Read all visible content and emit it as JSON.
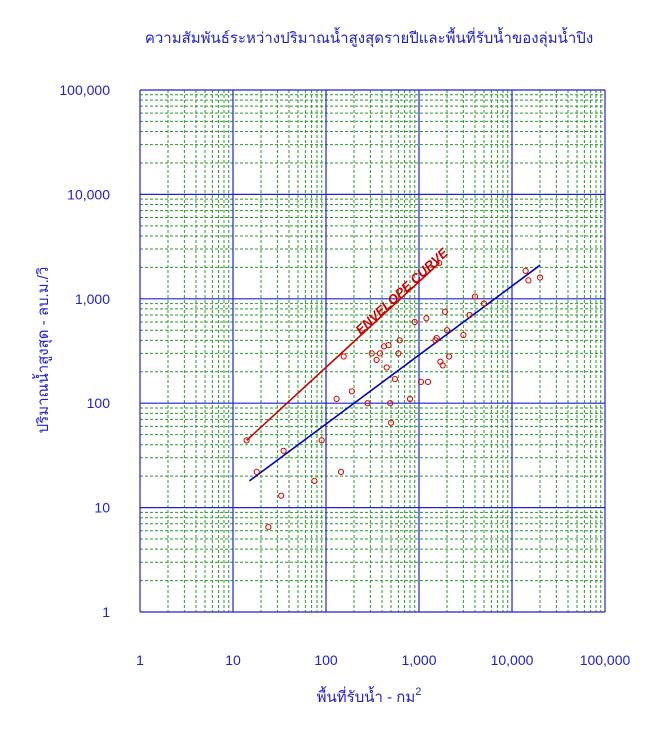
{
  "chart_data": {
    "type": "scatter",
    "title": "ความสัมพันธ์ระหว่างปริมาณน้ำสูงสุดรายปีและพื้นที่รับน้ำของลุ่มน้ำปิง",
    "xlabel": "พื้นที่รับน้ำ - กม",
    "xlabel_superscript": "2",
    "ylabel": "ปริมาณน้ำสูงสุด - ลบ.ม./วิ",
    "x_scale": "log",
    "y_scale": "log",
    "xlim": [
      1,
      100000
    ],
    "ylim": [
      1,
      100000
    ],
    "x_ticks": [
      1,
      10,
      100,
      1000,
      10000,
      100000
    ],
    "x_tick_labels": [
      "1",
      "10",
      "100",
      "1,000",
      "10,000",
      "100,000"
    ],
    "y_ticks": [
      1,
      10,
      100,
      1000,
      10000,
      100000
    ],
    "y_tick_labels": [
      "1",
      "10",
      "100",
      "1,000",
      "10,000",
      "100,000"
    ],
    "grid": "major solid blue, minor dashed green",
    "annotations": [
      {
        "text": "ENVELOPE CURVE",
        "color": "#cc0000",
        "anchor_x": 700,
        "anchor_y": 1100
      }
    ],
    "series": [
      {
        "kind": "points",
        "color": "#dd0000",
        "points": [
          [
            14,
            44
          ],
          [
            18,
            22
          ],
          [
            24,
            6.5
          ],
          [
            33,
            13
          ],
          [
            35,
            35
          ],
          [
            75,
            18
          ],
          [
            90,
            44
          ],
          [
            130,
            110
          ],
          [
            145,
            22
          ],
          [
            155,
            280
          ],
          [
            190,
            130
          ],
          [
            280,
            100
          ],
          [
            310,
            300
          ],
          [
            350,
            260
          ],
          [
            380,
            300
          ],
          [
            420,
            350
          ],
          [
            450,
            220
          ],
          [
            470,
            360
          ],
          [
            490,
            100
          ],
          [
            500,
            65
          ],
          [
            550,
            170
          ],
          [
            600,
            300
          ],
          [
            620,
            400
          ],
          [
            800,
            110
          ],
          [
            900,
            600
          ],
          [
            1050,
            160
          ],
          [
            1200,
            650
          ],
          [
            1250,
            160
          ],
          [
            1500,
            400
          ],
          [
            1550,
            420
          ],
          [
            1650,
            2200
          ],
          [
            1700,
            250
          ],
          [
            1800,
            230
          ],
          [
            1900,
            750
          ],
          [
            2000,
            500
          ],
          [
            2100,
            280
          ],
          [
            3000,
            450
          ],
          [
            3500,
            700
          ],
          [
            4000,
            1050
          ],
          [
            5000,
            900
          ],
          [
            14000,
            1850
          ],
          [
            15000,
            1500
          ],
          [
            20000,
            1600
          ]
        ]
      },
      {
        "kind": "line",
        "name": "envelope",
        "color": "#cc0000",
        "points": [
          [
            14,
            44
          ],
          [
            1650,
            2200
          ]
        ]
      },
      {
        "kind": "line",
        "name": "regression",
        "color": "#0000cc",
        "points": [
          [
            15,
            18
          ],
          [
            20000,
            2100
          ]
        ]
      }
    ]
  }
}
